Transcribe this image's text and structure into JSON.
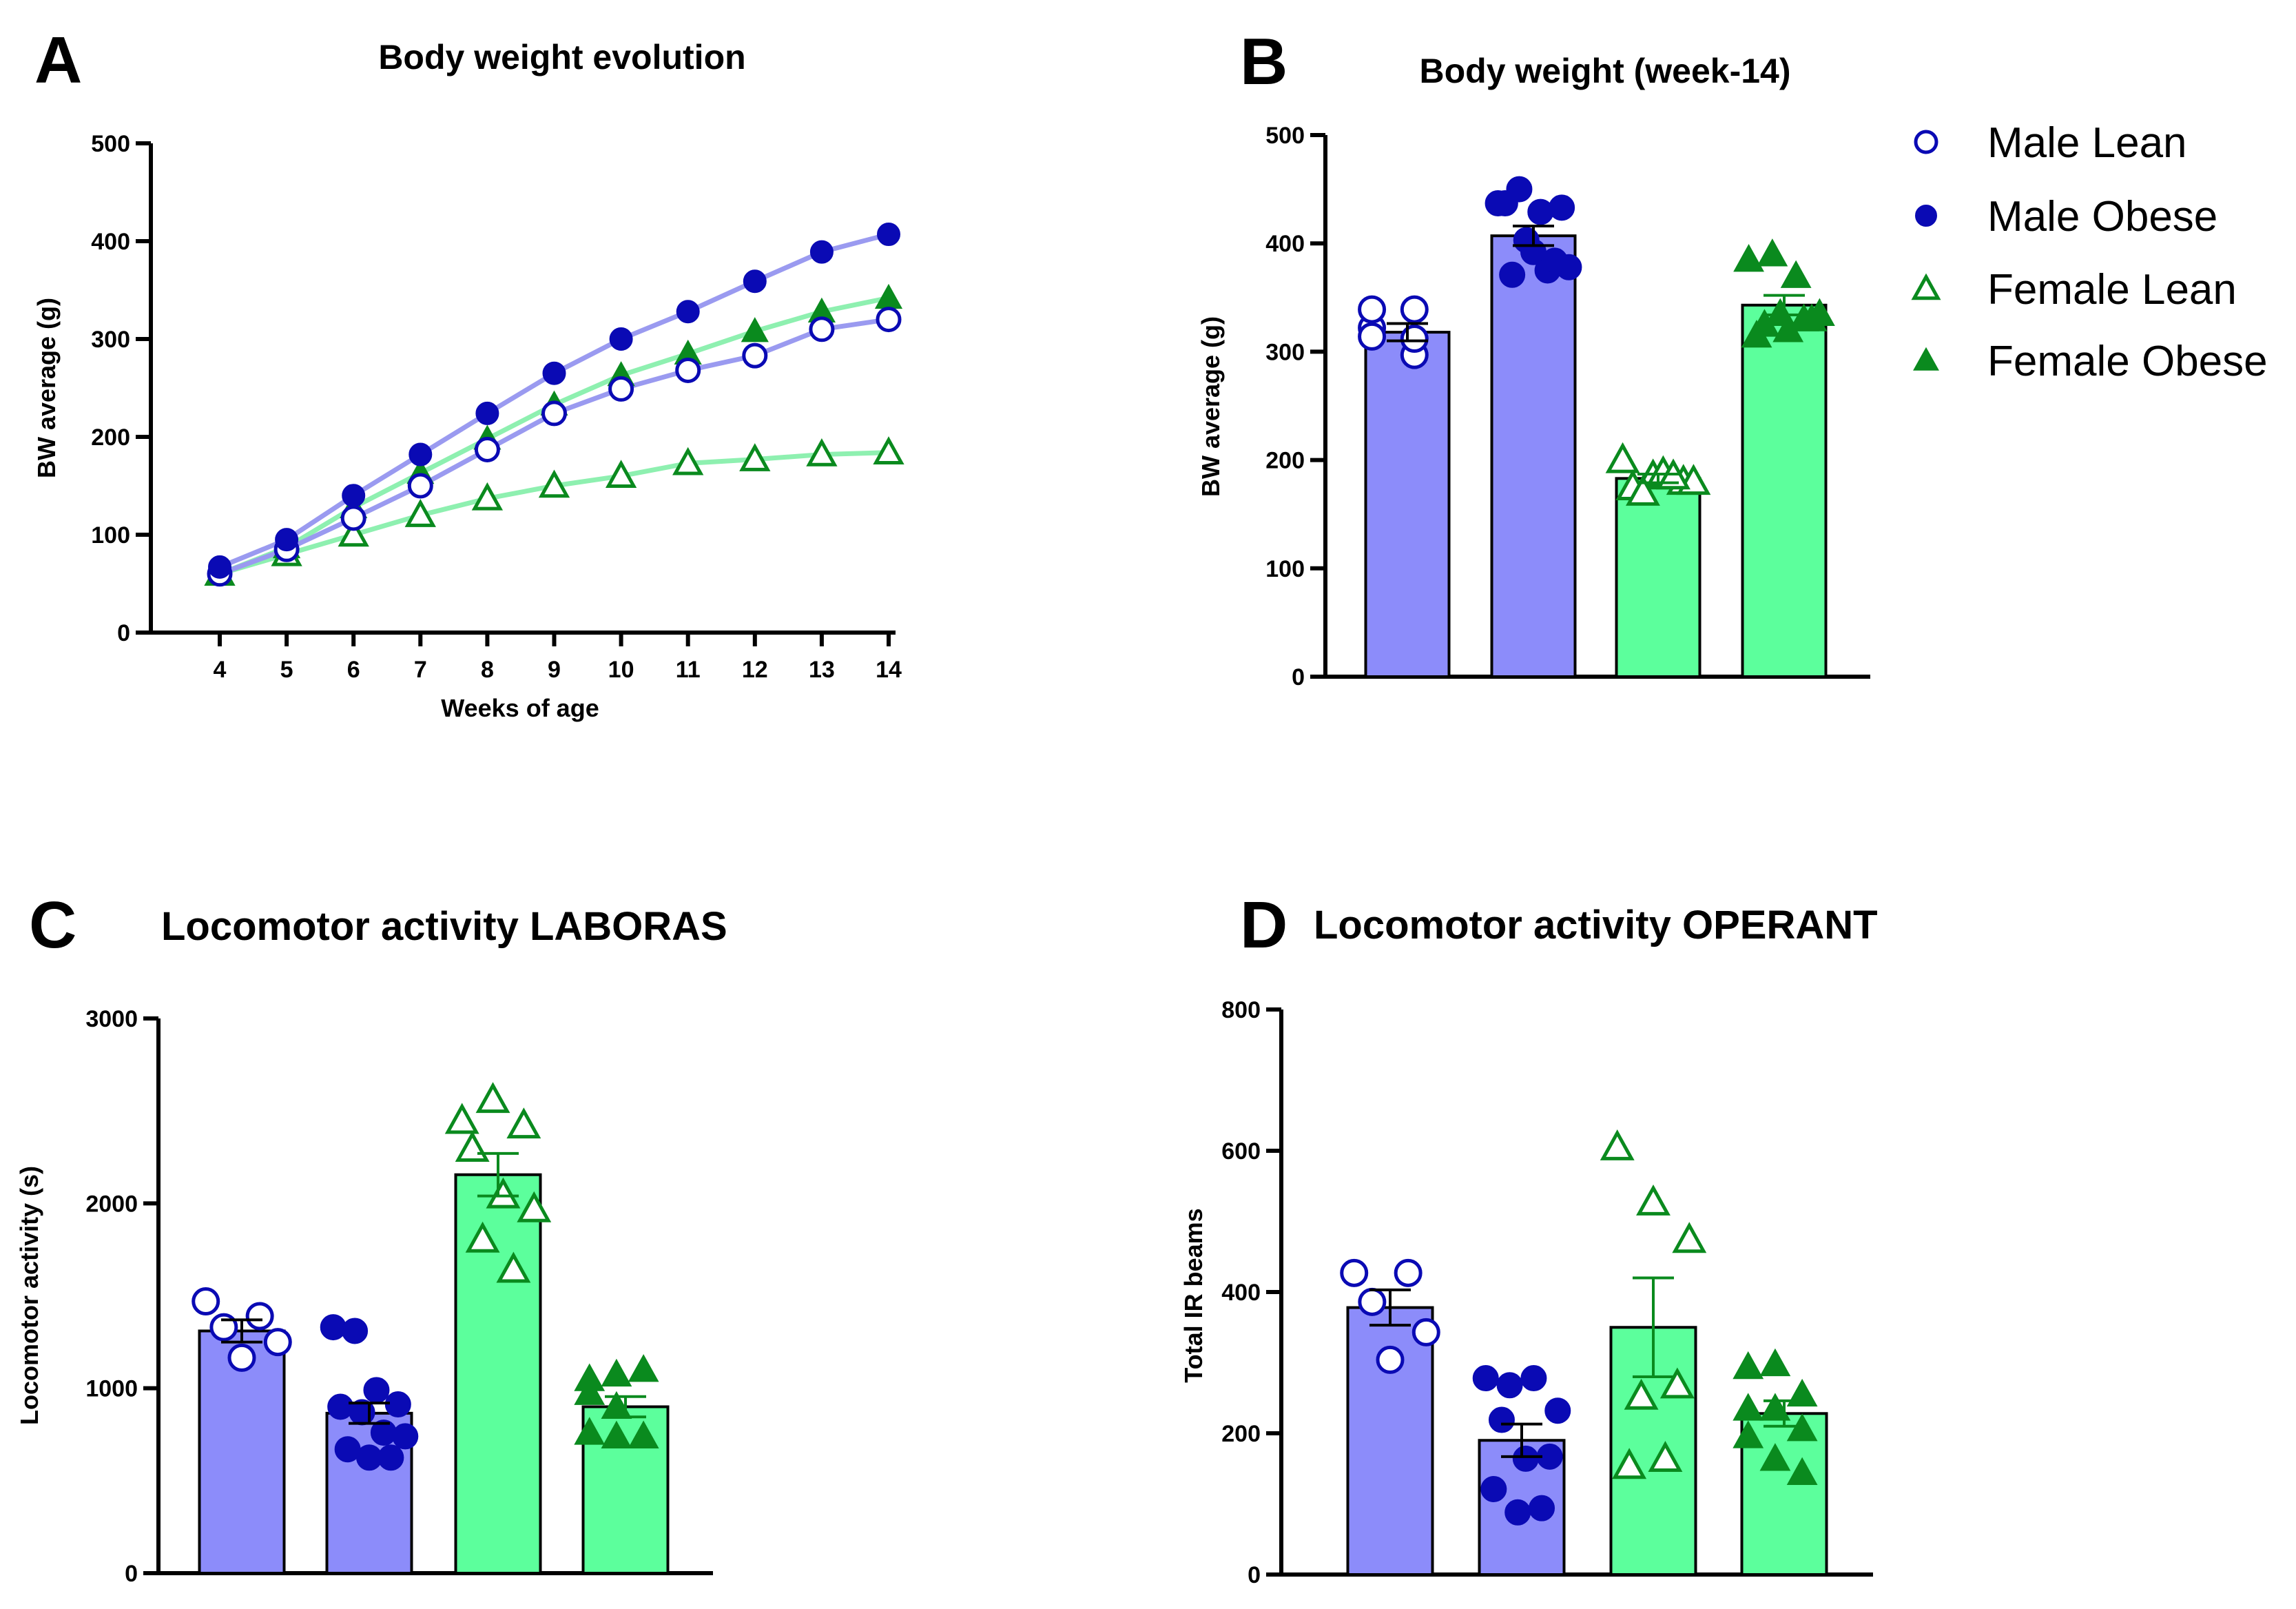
{
  "colors": {
    "male_bar": "#8c8cfa",
    "female_bar": "#5cff9c",
    "male_marker": "#0a0ab4",
    "female_marker": "#0a8a1e",
    "male_line": "#9a9af0",
    "female_line": "#8ef0b0"
  },
  "legend": {
    "placement": "right of panel B",
    "items": [
      {
        "label": "Male Lean",
        "marker": "open-circle"
      },
      {
        "label": "Male Obese",
        "marker": "filled-circle"
      },
      {
        "label": "Female Lean",
        "marker": "open-triangle"
      },
      {
        "label": "Female Obese",
        "marker": "filled-triangle"
      }
    ]
  },
  "chart_data": [
    {
      "panel": "A",
      "type": "line",
      "title": "Body weight evolution",
      "xlabel": "Weeks of age",
      "ylabel": "BW average (g)",
      "x": [
        4,
        5,
        6,
        7,
        8,
        9,
        10,
        11,
        12,
        13,
        14
      ],
      "xticks": [
        "4",
        "5",
        "6",
        "7",
        "8",
        "9",
        "10",
        "11",
        "12",
        "13",
        "14"
      ],
      "ylim": [
        0,
        500
      ],
      "yticks": [
        "0",
        "100",
        "200",
        "300",
        "400",
        "500"
      ],
      "grid": false,
      "series": [
        {
          "name": "Male Lean",
          "values": [
            60,
            85,
            117,
            150,
            187,
            224,
            249,
            268,
            283,
            310,
            320
          ]
        },
        {
          "name": "Male Obese",
          "values": [
            67,
            95,
            140,
            182,
            224,
            265,
            300,
            328,
            359,
            389,
            407
          ]
        },
        {
          "name": "Female Lean",
          "values": [
            60,
            80,
            100,
            120,
            137,
            150,
            160,
            173,
            177,
            182,
            184
          ]
        },
        {
          "name": "Female Obese",
          "values": [
            60,
            87,
            128,
            163,
            198,
            233,
            263,
            285,
            308,
            328,
            342
          ]
        }
      ]
    },
    {
      "panel": "B",
      "type": "bar",
      "title": "Body weight (week-14)",
      "xlabel": "",
      "ylabel": "BW average (g)",
      "ylim": [
        0,
        500
      ],
      "yticks": [
        "0",
        "100",
        "200",
        "300",
        "400",
        "500"
      ],
      "categories": [
        "Male Lean",
        "Male Obese",
        "Female Lean",
        "Female Obese"
      ],
      "values": [
        318,
        407,
        183,
        343
      ],
      "sem": [
        8,
        9,
        4,
        9
      ],
      "points": [
        [
          322,
          297,
          339,
          339,
          314,
          312
        ],
        [
          437,
          450,
          429,
          433,
          437,
          403,
          375,
          378,
          371,
          392,
          384
        ],
        [
          200,
          185,
          180,
          175,
          188,
          180,
          170,
          185
        ],
        [
          385,
          390,
          370,
          335,
          325,
          320,
          330,
          315,
          335,
          330
        ]
      ]
    },
    {
      "panel": "C",
      "type": "bar",
      "title": "Locomotor activity LABORAS",
      "xlabel": "",
      "ylabel": "Locomotor activity (s)",
      "ylim": [
        0,
        3000
      ],
      "yticks": [
        "0",
        "1000",
        "2000",
        "3000"
      ],
      "categories": [
        "Male Lean",
        "Male Obese",
        "Female Lean",
        "Female Obese"
      ],
      "values": [
        1310,
        865,
        2155,
        900
      ],
      "sem": [
        60,
        55,
        115,
        55
      ],
      "points": [
        [
          1470,
          1390,
          1330,
          1250,
          1165
        ],
        [
          1330,
          1310,
          990,
          913,
          900,
          870,
          760,
          740,
          670,
          625,
          625
        ],
        [
          2447,
          2560,
          2422,
          2296,
          2044,
          1969,
          1805,
          1642
        ],
        [
          1050,
          1075,
          1100,
          975,
          900,
          740,
          760,
          740,
          740
        ]
      ]
    },
    {
      "panel": "D",
      "type": "bar",
      "title": "Locomotor activity OPERANT",
      "xlabel": "",
      "ylabel": "Total IR beams",
      "ylim": [
        0,
        800
      ],
      "yticks": [
        "0",
        "200",
        "400",
        "600",
        "800"
      ],
      "categories": [
        "Male Lean",
        "Male Obese",
        "Female Lean",
        "Female Obese"
      ],
      "values": [
        378,
        190,
        350,
        228
      ],
      "sem": [
        25,
        23,
        70,
        18
      ],
      "points": [
        [
          427,
          427,
          386,
          343,
          304
        ],
        [
          278,
          268,
          278,
          232,
          219,
          164,
          167,
          121,
          88,
          94
        ],
        [
          605,
          527,
          474,
          252,
          268,
          154,
          164
        ],
        [
          294,
          298,
          255,
          235,
          235,
          206,
          196,
          164,
          144
        ]
      ]
    }
  ]
}
